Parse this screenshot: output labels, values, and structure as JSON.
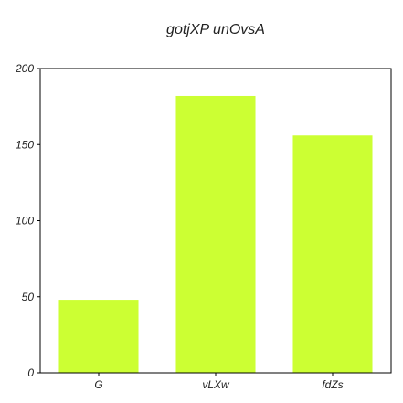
{
  "chart_data": {
    "type": "bar",
    "title": "gotjXP unOvsA",
    "categories": [
      "G",
      "vLXw",
      "fdZs"
    ],
    "values": [
      48,
      182,
      156
    ],
    "ylim": [
      0,
      200
    ],
    "yticks": [
      0,
      50,
      100,
      150,
      200
    ],
    "xlabel": "",
    "ylabel": "",
    "grid": false,
    "bar_color": "#ccff33"
  }
}
